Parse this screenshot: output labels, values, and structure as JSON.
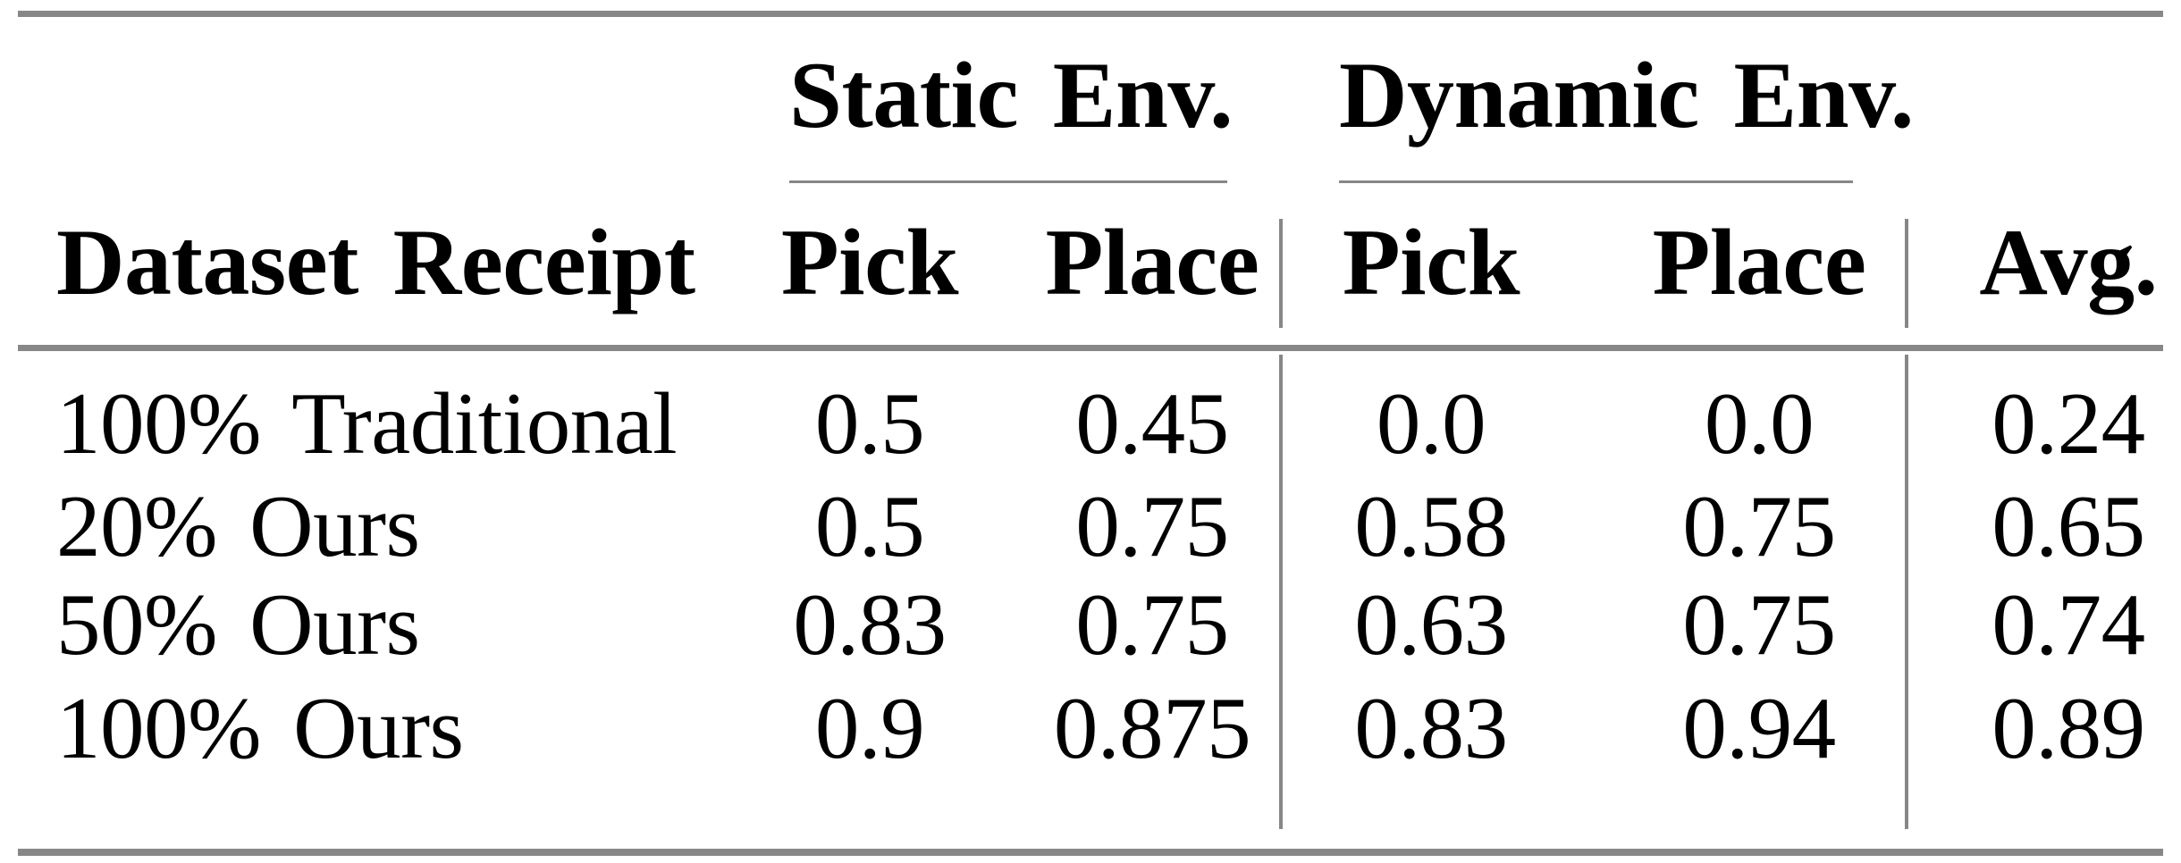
{
  "table": {
    "groups": [
      {
        "label": "Static Env."
      },
      {
        "label": "Dynamic Env."
      }
    ],
    "header": {
      "dataset": "Dataset Receipt",
      "static_pick": "Pick",
      "static_place": "Place",
      "dynamic_pick": "Pick",
      "dynamic_place": "Place",
      "avg": "Avg."
    },
    "rows": [
      {
        "dataset": "100% Traditional",
        "static_pick": "0.5",
        "static_place": "0.45",
        "dynamic_pick": "0.0",
        "dynamic_place": "0.0",
        "avg": "0.24"
      },
      {
        "dataset": "20% Ours",
        "static_pick": "0.5",
        "static_place": "0.75",
        "dynamic_pick": "0.58",
        "dynamic_place": "0.75",
        "avg": "0.65"
      },
      {
        "dataset": "50% Ours",
        "static_pick": "0.83",
        "static_place": "0.75",
        "dynamic_pick": "0.63",
        "dynamic_place": "0.75",
        "avg": "0.74"
      },
      {
        "dataset": "100% Ours",
        "static_pick": "0.9",
        "static_place": "0.875",
        "dynamic_pick": "0.83",
        "dynamic_place": "0.94",
        "avg": "0.89"
      }
    ],
    "colors": {
      "rule": "#878787",
      "text": "#000000",
      "background": "#ffffff"
    }
  },
  "chart_data": {
    "type": "table",
    "columns": [
      "Dataset Receipt",
      "Static Env. Pick",
      "Static Env. Place",
      "Dynamic Env. Pick",
      "Dynamic Env. Place",
      "Avg."
    ],
    "rows": [
      [
        "100% Traditional",
        0.5,
        0.45,
        0.0,
        0.0,
        0.24
      ],
      [
        "20% Ours",
        0.5,
        0.75,
        0.58,
        0.75,
        0.65
      ],
      [
        "50% Ours",
        0.83,
        0.75,
        0.63,
        0.75,
        0.74
      ],
      [
        "100% Ours",
        0.9,
        0.875,
        0.83,
        0.94,
        0.89
      ]
    ]
  }
}
